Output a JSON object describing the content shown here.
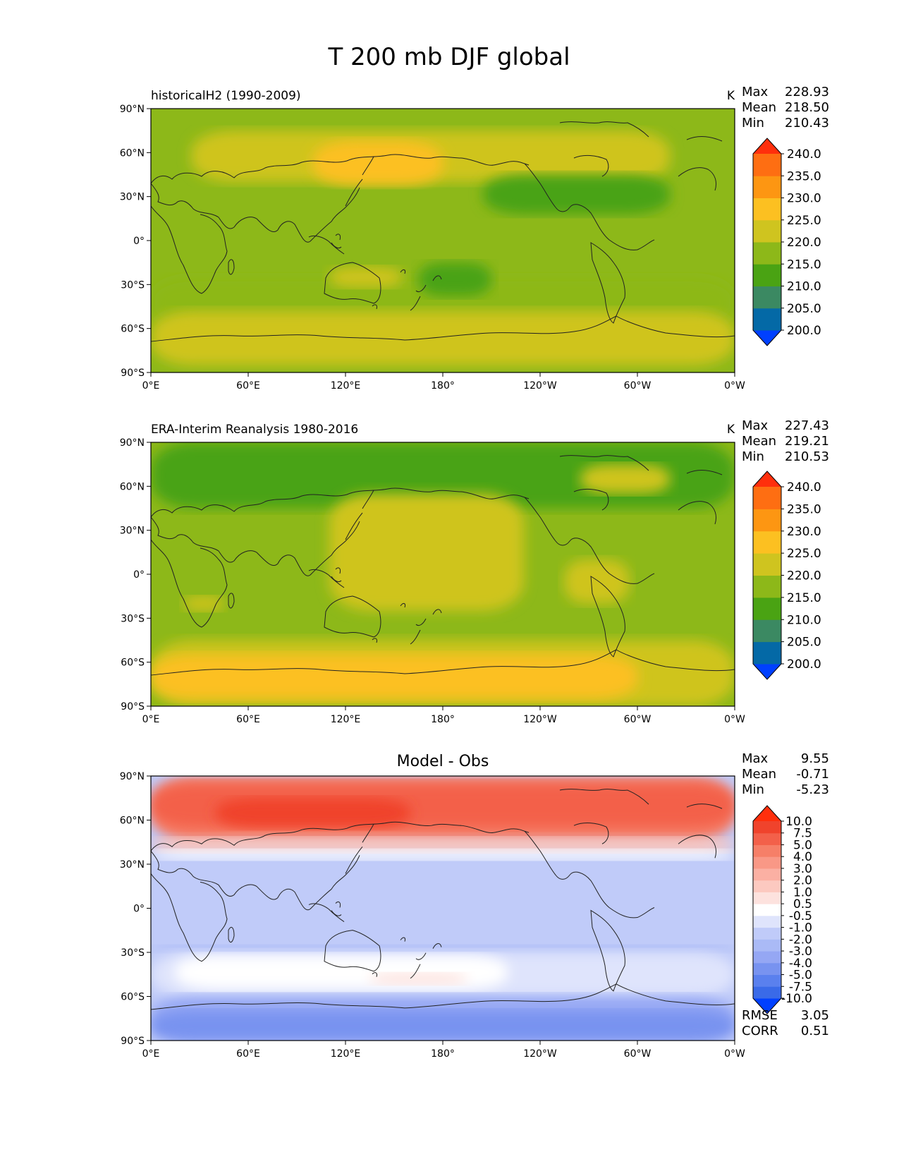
{
  "chart_data": {
    "type": "heatmap",
    "title": "T 200 mb DJF global",
    "x_ticks": [
      "0°E",
      "60°E",
      "120°E",
      "180°",
      "120°W",
      "60°W",
      "0°W"
    ],
    "y_ticks": [
      "90°N",
      "60°N",
      "30°N",
      "0°",
      "30°S",
      "60°S",
      "90°S"
    ],
    "xlim": [
      0,
      360
    ],
    "ylim": [
      -90,
      90
    ],
    "panels": [
      {
        "name": "model",
        "left_title": "historicalH2 (1990-2009)",
        "center_title": "",
        "units": "K",
        "stats": [
          {
            "label": "Max",
            "value": "228.93"
          },
          {
            "label": "Mean",
            "value": "218.50"
          },
          {
            "label": "Min",
            "value": "210.43"
          }
        ],
        "levels": [
          200,
          205,
          210,
          215,
          220,
          225,
          230,
          235,
          240
        ],
        "colorbar_labels": [
          "200.0",
          "205.0",
          "210.0",
          "215.0",
          "220.0",
          "225.0",
          "230.0",
          "235.0",
          "240.0"
        ],
        "colors": [
          "#0040ff",
          "#0469a6",
          "#3b8962",
          "#4aa313",
          "#8db819",
          "#cfc41f",
          "#fcc021",
          "#fd9612",
          "#fe6e12",
          "#ff2f0c"
        ],
        "regions": [
          {
            "lon": [
              0,
              360
            ],
            "lat": [
              -90,
              90
            ],
            "v": 217.5
          },
          {
            "lon": [
              0,
              360
            ],
            "lat": [
              -60,
              -25
            ],
            "v": 217.5
          },
          {
            "lon": [
              0,
              360
            ],
            "lat": [
              -85,
              -48
            ],
            "v": 222.5
          },
          {
            "lon": [
              25,
              320
            ],
            "lat": [
              40,
              75
            ],
            "v": 222.5
          },
          {
            "lon": [
              100,
              180
            ],
            "lat": [
              38,
              68
            ],
            "v": 227.5
          },
          {
            "lon": [
              205,
              320
            ],
            "lat": [
              18,
              45
            ],
            "v": 212.5
          },
          {
            "lon": [
              165,
              210
            ],
            "lat": [
              -38,
              -15
            ],
            "v": 212.5
          },
          {
            "lon": [
              110,
              155
            ],
            "lat": [
              -32,
              -18
            ],
            "v": 222.5
          }
        ]
      },
      {
        "name": "obs",
        "left_title": "ERA-Interim Reanalysis 1980-2016",
        "center_title": "",
        "units": "K",
        "stats": [
          {
            "label": "Max",
            "value": "227.43"
          },
          {
            "label": "Mean",
            "value": "219.21"
          },
          {
            "label": "Min",
            "value": "210.53"
          }
        ],
        "levels": [
          200,
          205,
          210,
          215,
          220,
          225,
          230,
          235,
          240
        ],
        "colorbar_labels": [
          "200.0",
          "205.0",
          "210.0",
          "215.0",
          "220.0",
          "225.0",
          "230.0",
          "235.0",
          "240.0"
        ],
        "colors": [
          "#0040ff",
          "#0469a6",
          "#3b8962",
          "#4aa313",
          "#8db819",
          "#cfc41f",
          "#fcc021",
          "#fd9612",
          "#fe6e12",
          "#ff2f0c"
        ],
        "regions": [
          {
            "lon": [
              0,
              360
            ],
            "lat": [
              -90,
              90
            ],
            "v": 217.5
          },
          {
            "lon": [
              0,
              360
            ],
            "lat": [
              45,
              90
            ],
            "v": 212.5
          },
          {
            "lon": [
              110,
              230
            ],
            "lat": [
              -25,
              55
            ],
            "v": 222.5
          },
          {
            "lon": [
              0,
              360
            ],
            "lat": [
              -90,
              -45
            ],
            "v": 222.5
          },
          {
            "lon": [
              0,
              300
            ],
            "lat": [
              -85,
              -55
            ],
            "v": 227.5
          },
          {
            "lon": [
              255,
              295
            ],
            "lat": [
              -20,
              10
            ],
            "v": 222.5
          },
          {
            "lon": [
              20,
              45
            ],
            "lat": [
              -25,
              -15
            ],
            "v": 222.5
          },
          {
            "lon": [
              265,
              320
            ],
            "lat": [
              55,
              75
            ],
            "v": 222.5
          }
        ]
      },
      {
        "name": "diff",
        "left_title": "",
        "center_title": "Model - Obs",
        "units": "",
        "stats": [
          {
            "label": "Max",
            "value": "9.55"
          },
          {
            "label": "Mean",
            "value": "-0.71"
          },
          {
            "label": "Min",
            "value": "-5.23"
          }
        ],
        "extra_stats": [
          {
            "label": "RMSE",
            "value": "3.05"
          },
          {
            "label": "CORR",
            "value": "0.51"
          }
        ],
        "levels": [
          -10,
          -7.5,
          -5,
          -4,
          -3,
          -2,
          -1,
          -0.5,
          0.5,
          1,
          2,
          3,
          4,
          5,
          7.5,
          10
        ],
        "colorbar_labels": [
          "-10.0",
          "-7.5",
          "-5.0",
          "-4.0",
          "-3.0",
          "-2.0",
          "-1.0",
          "-0.5",
          "0.5",
          "1.0",
          "2.0",
          "3.0",
          "4.0",
          "5.0",
          "7.5",
          "10.0"
        ],
        "colors": [
          "#0040ff",
          "#3a6ae8",
          "#5a80ee",
          "#7893f0",
          "#95a7f4",
          "#aabaf6",
          "#c0cbf9",
          "#dfe4fc",
          "#ffffff",
          "#fde2de",
          "#fcc9c0",
          "#fbb0a3",
          "#f99886",
          "#f67f68",
          "#f3604a",
          "#f0432c",
          "#ff2f0c"
        ],
        "regions": [
          {
            "lon": [
              0,
              360
            ],
            "lat": [
              -90,
              90
            ],
            "v": -1.5
          },
          {
            "lon": [
              0,
              360
            ],
            "lat": [
              45,
              90
            ],
            "v": 4.5
          },
          {
            "lon": [
              0,
              360
            ],
            "lat": [
              55,
              85
            ],
            "v": 6
          },
          {
            "lon": [
              40,
              160
            ],
            "lat": [
              55,
              75
            ],
            "v": 8.5
          },
          {
            "lon": [
              0,
              360
            ],
            "lat": [
              38,
              48
            ],
            "v": 1.5
          },
          {
            "lon": [
              0,
              360
            ],
            "lat": [
              33,
              40
            ],
            "v": 0
          },
          {
            "lon": [
              0,
              360
            ],
            "lat": [
              -30,
              -25
            ],
            "v": -2.5
          },
          {
            "lon": [
              0,
              360
            ],
            "lat": [
              -60,
              -30
            ],
            "v": -0.75
          },
          {
            "lon": [
              15,
              220
            ],
            "lat": [
              -55,
              -32
            ],
            "v": 0
          },
          {
            "lon": [
              135,
              195
            ],
            "lat": [
              -52,
              -44
            ],
            "v": 0.75
          },
          {
            "lon": [
              0,
              360
            ],
            "lat": [
              -90,
              -60
            ],
            "v": -3.5
          },
          {
            "lon": [
              0,
              360
            ],
            "lat": [
              -90,
              -70
            ],
            "v": -4.5
          }
        ]
      }
    ]
  }
}
